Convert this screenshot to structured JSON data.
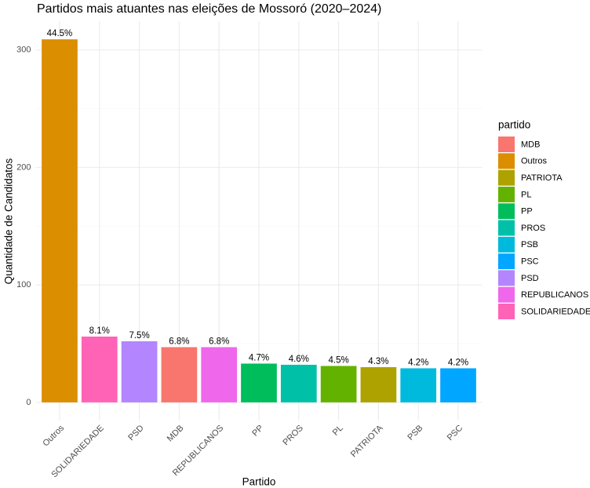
{
  "chart_data": {
    "type": "bar",
    "title": "Partidos mais atuantes nas eleições de Mossoró (2020–2024)",
    "x_label": "Partido",
    "y_label": "Quantidade de Candidatos",
    "categories": [
      "Outros",
      "SOLIDARIEDADE",
      "PSD",
      "MDB",
      "REPUBLICANOS",
      "PP",
      "PROS",
      "PL",
      "PATRIOTA",
      "PSB",
      "PSC"
    ],
    "values": [
      309,
      56,
      52,
      47,
      47,
      33,
      32,
      31,
      30,
      29,
      29
    ],
    "value_labels": [
      "44.5%",
      "8.1%",
      "7.5%",
      "6.8%",
      "6.8%",
      "4.7%",
      "4.6%",
      "4.5%",
      "4.3%",
      "4.2%",
      "4.2%"
    ],
    "ylim": [
      -15.45,
      324.45
    ],
    "yticks": [
      0,
      100,
      200,
      300
    ],
    "grid": true,
    "legend": {
      "title": "partido",
      "position": "right",
      "items": [
        {
          "name": "MDB",
          "color": "#F8766D"
        },
        {
          "name": "Outros",
          "color": "#DB8E00"
        },
        {
          "name": "PATRIOTA",
          "color": "#AEA200"
        },
        {
          "name": "PL",
          "color": "#64B200"
        },
        {
          "name": "PP",
          "color": "#00BD5C"
        },
        {
          "name": "PROS",
          "color": "#00C1A7"
        },
        {
          "name": "PSB",
          "color": "#00BADE"
        },
        {
          "name": "PSC",
          "color": "#00A6FF"
        },
        {
          "name": "PSD",
          "color": "#B385FF"
        },
        {
          "name": "REPUBLICANOS",
          "color": "#EF67EB"
        },
        {
          "name": "SOLIDARIEDADE",
          "color": "#FF63B6"
        }
      ]
    }
  }
}
